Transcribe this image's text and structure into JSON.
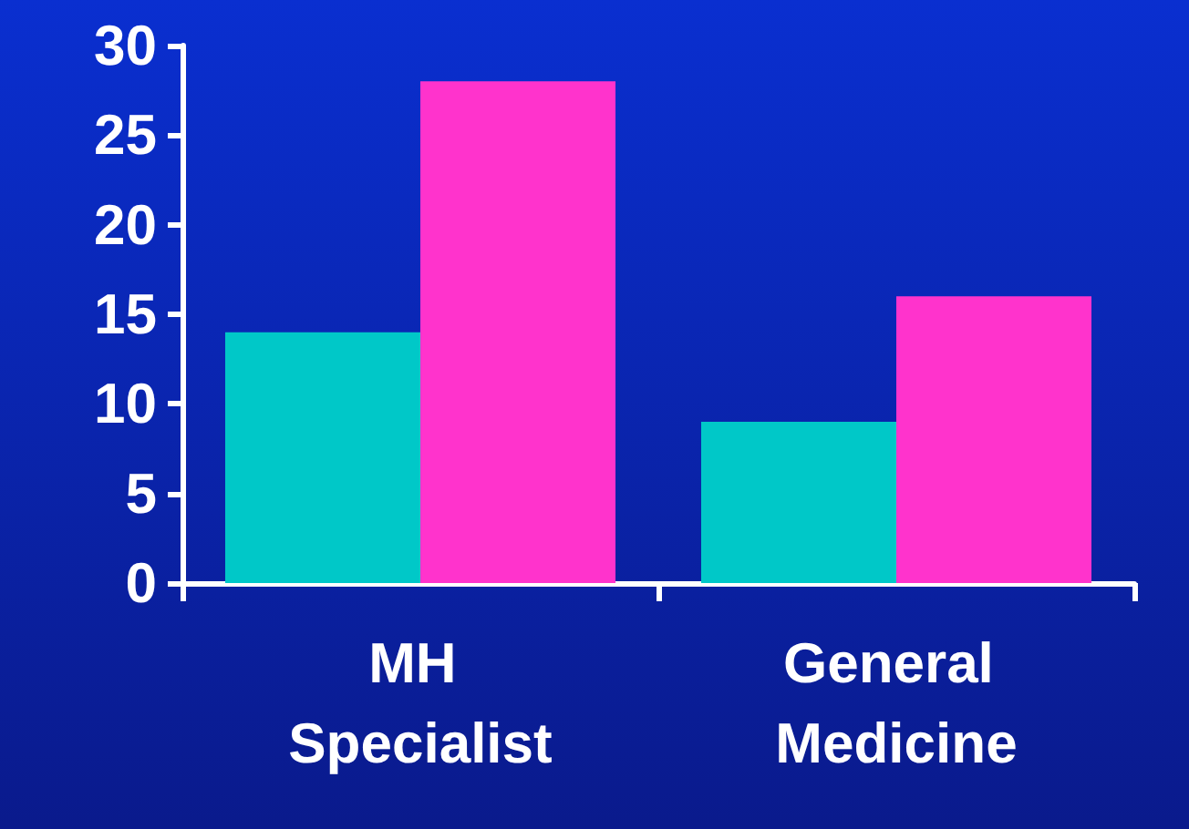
{
  "chart_data": {
    "type": "bar",
    "categories": [
      "MH Specialist",
      "General Medicine"
    ],
    "series": [
      {
        "color": "#00c8c8",
        "values": [
          14,
          9
        ]
      },
      {
        "color": "#ff33cc",
        "values": [
          28,
          16
        ]
      }
    ],
    "ylim": [
      0,
      30
    ],
    "yticks": [
      0,
      5,
      10,
      15,
      20,
      25,
      30
    ],
    "grid": false
  }
}
